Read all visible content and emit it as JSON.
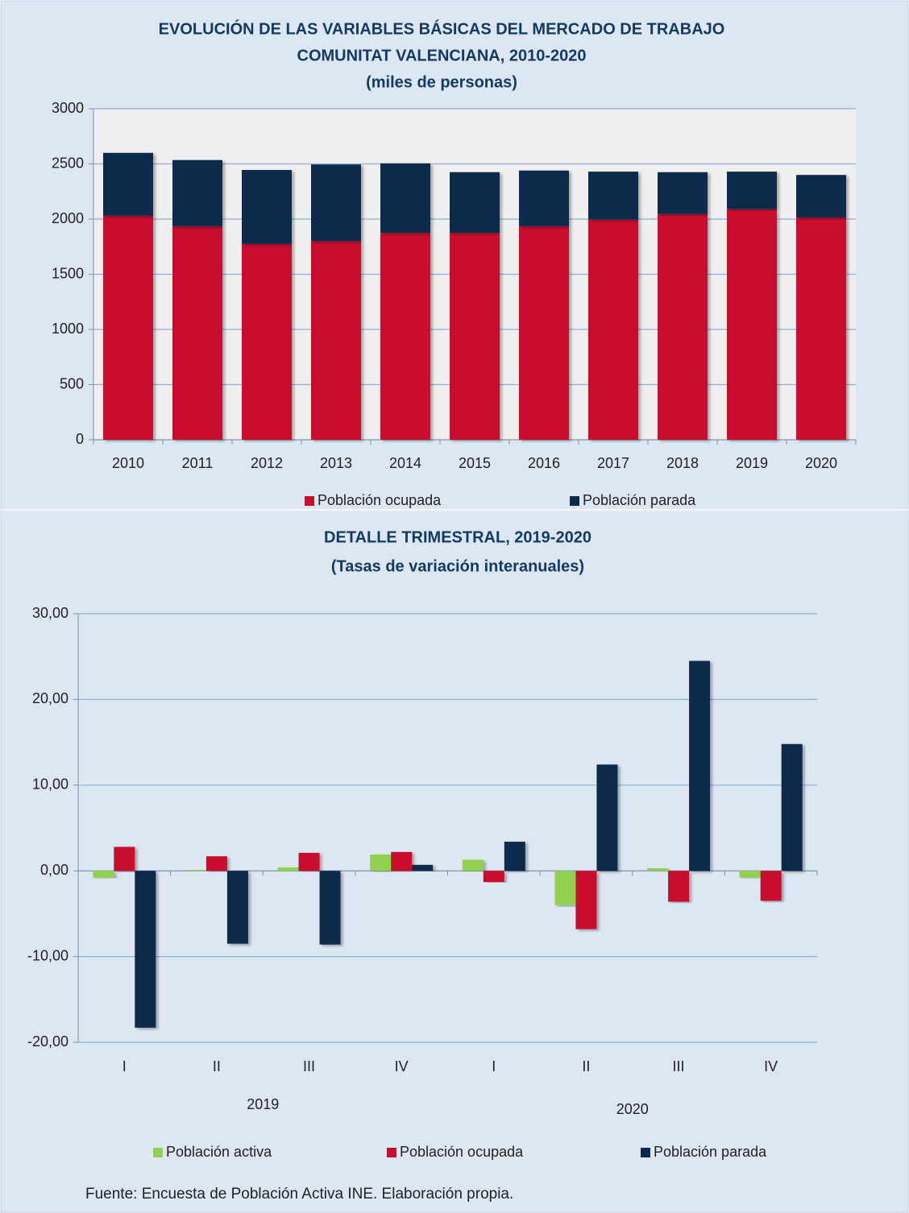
{
  "chart_data": [
    {
      "type": "bar",
      "stacked": true,
      "title": [
        "EVOLUCIÓN DE LAS VARIABLES BÁSICAS DEL MERCADO DE TRABAJO",
        "COMUNITAT VALENCIANA, 2010-2020"
      ],
      "subtitle": "(miles de personas)",
      "categories": [
        "2010",
        "2011",
        "2012",
        "2013",
        "2014",
        "2015",
        "2016",
        "2017",
        "2018",
        "2019",
        "2020"
      ],
      "series": [
        {
          "name": "Población ocupada",
          "color": "#c8102e",
          "values": [
            2030,
            1935,
            1775,
            1800,
            1875,
            1875,
            1935,
            1995,
            2045,
            2090,
            2015
          ]
        },
        {
          "name": "Población parada",
          "color": "#0d2a4c",
          "values": [
            570,
            600,
            670,
            695,
            630,
            550,
            505,
            435,
            380,
            340,
            385
          ]
        }
      ],
      "ylim": [
        0,
        3000
      ],
      "yticks": [
        0,
        500,
        1000,
        1500,
        2000,
        2500,
        3000
      ],
      "grid": true,
      "legend": "bottom"
    },
    {
      "type": "bar",
      "stacked": false,
      "title": [
        "DETALLE TRIMESTRAL, 2019-2020"
      ],
      "subtitle": "(Tasas de variación interanuales)",
      "categories": [
        "I",
        "II",
        "III",
        "IV",
        "I",
        "II",
        "III",
        "IV"
      ],
      "group_labels": [
        "2019",
        "2020"
      ],
      "series": [
        {
          "name": "Población activa",
          "color": "#92d050",
          "values": [
            -0.8,
            0.1,
            0.4,
            1.9,
            1.3,
            -4.0,
            0.3,
            -0.8
          ]
        },
        {
          "name": "Población ocupada",
          "color": "#c8102e",
          "values": [
            2.8,
            1.7,
            2.1,
            2.2,
            -1.3,
            -6.8,
            -3.6,
            -3.5
          ]
        },
        {
          "name": "Población parada",
          "color": "#0d2a4c",
          "values": [
            -18.3,
            -8.5,
            -8.6,
            0.7,
            3.4,
            12.4,
            24.5,
            14.8
          ]
        }
      ],
      "ylim": [
        -20,
        30
      ],
      "yticks": [
        {
          "value": -20,
          "label": "-20,00"
        },
        {
          "value": -10,
          "label": "-10,00"
        },
        {
          "value": 0,
          "label": "0,00"
        },
        {
          "value": 10,
          "label": "10,00"
        },
        {
          "value": 20,
          "label": "20,00"
        },
        {
          "value": 30,
          "label": "30,00"
        }
      ],
      "grid": true,
      "legend": "bottom"
    }
  ],
  "source": "Fuente: Encuesta de Población Activa INE. Elaboración propia."
}
